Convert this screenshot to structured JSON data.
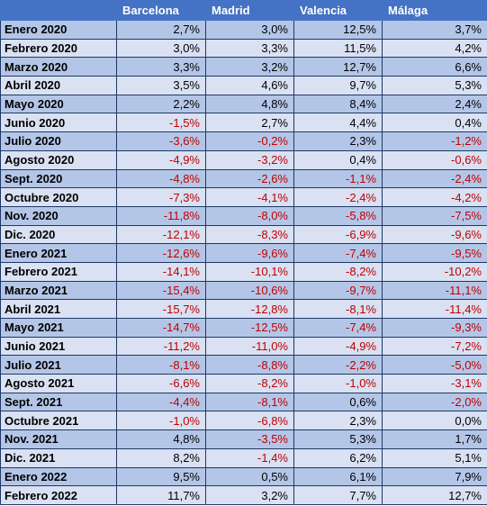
{
  "colors": {
    "header_bg": "#4472c4",
    "header_text": "#ffffff",
    "row_odd": "#b4c6e7",
    "row_even": "#d9e1f2",
    "negative": "#c00000",
    "border": "#1f3864"
  },
  "columns": [
    "",
    "Barcelona",
    "Madrid",
    "Valencia",
    "Málaga"
  ],
  "rows": [
    {
      "label": "Enero 2020",
      "values": [
        "2,7%",
        "3,0%",
        "12,5%",
        "3,7%"
      ]
    },
    {
      "label": "Febrero 2020",
      "values": [
        "3,0%",
        "3,3%",
        "11,5%",
        "4,2%"
      ]
    },
    {
      "label": "Marzo 2020",
      "values": [
        "3,3%",
        "3,2%",
        "12,7%",
        "6,6%"
      ]
    },
    {
      "label": "Abril 2020",
      "values": [
        "3,5%",
        "4,6%",
        "9,7%",
        "5,3%"
      ]
    },
    {
      "label": "Mayo 2020",
      "values": [
        "2,2%",
        "4,8%",
        "8,4%",
        "2,4%"
      ]
    },
    {
      "label": "Junio 2020",
      "values": [
        "-1,5%",
        "2,7%",
        "4,4%",
        "0,4%"
      ]
    },
    {
      "label": "Julio 2020",
      "values": [
        "-3,6%",
        "-0,2%",
        "2,3%",
        "-1,2%"
      ]
    },
    {
      "label": "Agosto 2020",
      "values": [
        "-4,9%",
        "-3,2%",
        "0,4%",
        "-0,6%"
      ]
    },
    {
      "label": "Sept. 2020",
      "values": [
        "-4,8%",
        "-2,6%",
        "-1,1%",
        "-2,4%"
      ]
    },
    {
      "label": "Octubre 2020",
      "values": [
        "-7,3%",
        "-4,1%",
        "-2,4%",
        "-4,2%"
      ]
    },
    {
      "label": "Nov. 2020",
      "values": [
        "-11,8%",
        "-8,0%",
        "-5,8%",
        "-7,5%"
      ]
    },
    {
      "label": "Dic. 2020",
      "values": [
        "-12,1%",
        "-8,3%",
        "-6,9%",
        "-9,6%"
      ]
    },
    {
      "label": "Enero 2021",
      "values": [
        "-12,6%",
        "-9,6%",
        "-7,4%",
        "-9,5%"
      ]
    },
    {
      "label": "Febrero 2021",
      "values": [
        "-14,1%",
        "-10,1%",
        "-8,2%",
        "-10,2%"
      ]
    },
    {
      "label": "Marzo 2021",
      "values": [
        "-15,4%",
        "-10,6%",
        "-9,7%",
        "-11,1%"
      ]
    },
    {
      "label": "Abril 2021",
      "values": [
        "-15,7%",
        "-12,8%",
        "-8,1%",
        "-11,4%"
      ]
    },
    {
      "label": "Mayo 2021",
      "values": [
        "-14,7%",
        "-12,5%",
        "-7,4%",
        "-9,3%"
      ]
    },
    {
      "label": "Junio 2021",
      "values": [
        "-11,2%",
        "-11,0%",
        "-4,9%",
        "-7,2%"
      ]
    },
    {
      "label": "Julio 2021",
      "values": [
        "-8,1%",
        "-8,8%",
        "-2,2%",
        "-5,0%"
      ]
    },
    {
      "label": "Agosto 2021",
      "values": [
        "-6,6%",
        "-8,2%",
        "-1,0%",
        "-3,1%"
      ]
    },
    {
      "label": "Sept. 2021",
      "values": [
        "-4,4%",
        "-8,1%",
        "0,6%",
        "-2,0%"
      ]
    },
    {
      "label": "Octubre 2021",
      "values": [
        "-1,0%",
        "-6,8%",
        "2,3%",
        "0,0%"
      ]
    },
    {
      "label": "Nov. 2021",
      "values": [
        "4,8%",
        "-3,5%",
        "5,3%",
        "1,7%"
      ]
    },
    {
      "label": "Dic. 2021",
      "values": [
        "8,2%",
        "-1,4%",
        "6,2%",
        "5,1%"
      ]
    },
    {
      "label": "Enero 2022",
      "values": [
        "9,5%",
        "0,5%",
        "6,1%",
        "7,9%"
      ]
    },
    {
      "label": "Febrero 2022",
      "values": [
        "11,7%",
        "3,2%",
        "7,7%",
        "12,7%"
      ]
    }
  ]
}
